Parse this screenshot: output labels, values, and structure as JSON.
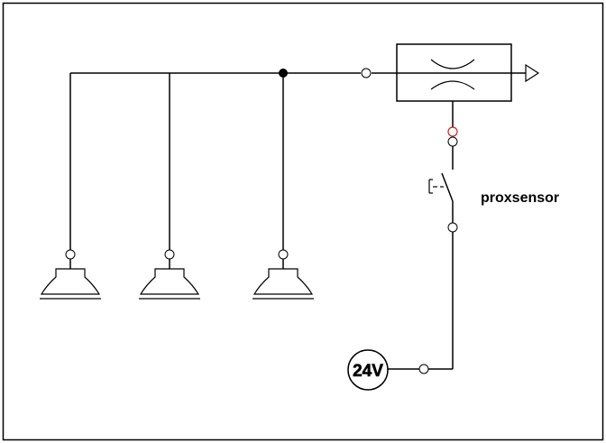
{
  "labels": {
    "sensor": "proxsensor",
    "supply": "24V"
  },
  "colors": {
    "line": "#000000",
    "background": "#ffffff",
    "sensor_port_accent": "#cc2222"
  },
  "components": {
    "suction_cups": 3,
    "vacuum_generator": "ejector-with-silencer",
    "switch": "proximity-switch",
    "supply": "24V-source"
  }
}
